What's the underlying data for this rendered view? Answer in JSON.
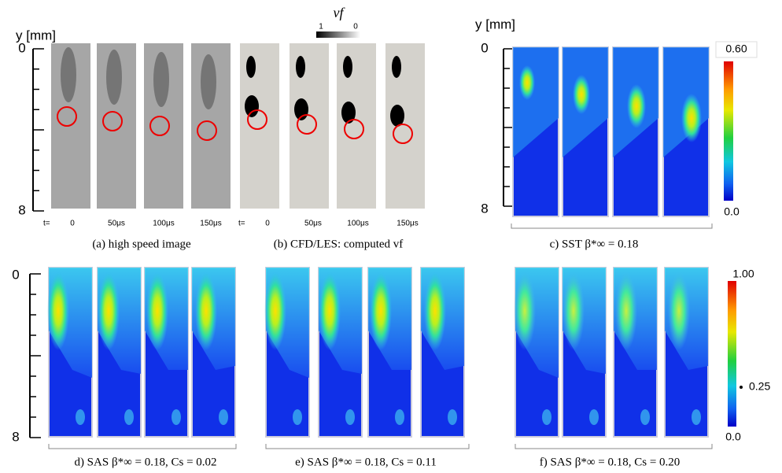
{
  "header": {
    "vf_label": "vf",
    "vf_max": "1",
    "vf_min": "0"
  },
  "axes": [
    {
      "title": "y [mm]",
      "ticks": [
        "0",
        "8"
      ]
    },
    {
      "title": "y [mm]",
      "ticks": [
        "0",
        "8"
      ]
    },
    {
      "ticks": [
        "0",
        "8"
      ]
    }
  ],
  "panels": [
    {
      "caption": "(a) high speed image",
      "time_prefix": "t=",
      "times": [
        "0",
        "50μs",
        "100μs",
        "150μs"
      ]
    },
    {
      "caption": "(b) CFD/LES: computed vf",
      "time_prefix": "t=",
      "times": [
        "0",
        "50μs",
        "100μs",
        "150μs"
      ]
    },
    {
      "caption": "c) SST  β*∞ = 0.18"
    },
    {
      "caption": "d) SAS  β*∞ = 0.18,  Cs = 0.02"
    },
    {
      "caption": "e) SAS  β*∞ = 0.18,  Cs = 0.11"
    },
    {
      "caption": "f) SAS  β*∞ = 0.18,  Cs = 0.20"
    }
  ],
  "colorbars": [
    {
      "max": "0.60",
      "min": "0.0"
    },
    {
      "max": "1.00",
      "mid": "0.25",
      "min": "0.0"
    }
  ]
}
